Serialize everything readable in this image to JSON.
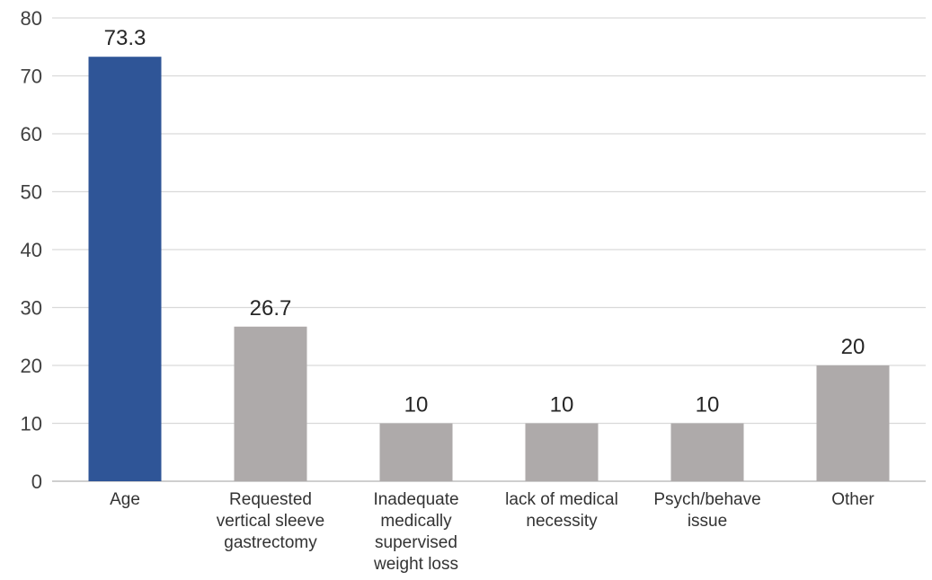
{
  "chart_data": {
    "type": "bar",
    "categories": [
      [
        "Age"
      ],
      [
        "Requested",
        "vertical sleeve",
        "gastrectomy"
      ],
      [
        "Inadequate",
        "medically",
        "supervised",
        "weight loss"
      ],
      [
        "lack of medical",
        "necessity"
      ],
      [
        "Psych/behave",
        "issue"
      ],
      [
        "Other"
      ]
    ],
    "values": [
      73.3,
      26.7,
      10,
      10,
      10,
      20
    ],
    "data_labels": [
      "73.3",
      "26.7",
      "10",
      "10",
      "10",
      "20"
    ],
    "ylim": [
      0,
      80
    ],
    "yticks": [
      0,
      10,
      20,
      30,
      40,
      50,
      60,
      70,
      80
    ],
    "title": "",
    "xlabel": "",
    "ylabel": "",
    "grid": true,
    "legend": "none",
    "colors": {
      "highlight": "#2f5597",
      "default": "#aeaaaa",
      "grid": "#d9d9d9"
    },
    "highlight_index": 0
  }
}
